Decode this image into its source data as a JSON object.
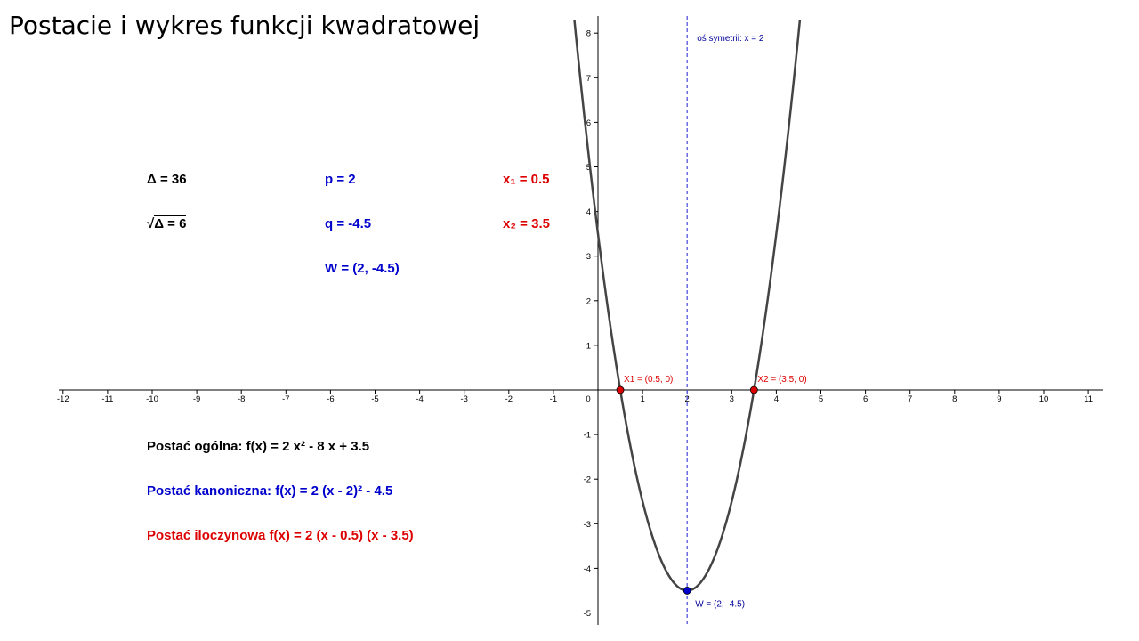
{
  "title": "Postacie i wykres funkcji kwadratowej",
  "values": {
    "delta": "Δ = 36",
    "sqrt_delta_symbol": "√",
    "sqrt_delta_rest": "Δ = 6",
    "p": "p = 2",
    "q": "q = -4.5",
    "vertex": "W = (2, -4.5)",
    "x1": "x₁ = 0.5",
    "x2": "x₂ = 3.5"
  },
  "forms": {
    "general": "Postać ogólna: f(x) = 2 x² - 8 x + 3.5",
    "canonical": "Postać kanoniczna: f(x) = 2 (x - 2)² - 4.5",
    "product": "Postać iloczynowa f(x) = 2 (x - 0.5) (x - 3.5)"
  },
  "colors": {
    "black": "#000000",
    "blue": "#0000cc",
    "red": "#dd0000",
    "curve": "#444444",
    "axis_of_symmetry": "#5555dd",
    "point_label_red": "#dd0000",
    "point_label_blue": "#000099"
  },
  "chart_data": {
    "type": "line",
    "function": "f(x) = 2 x^2 - 8 x + 3.5",
    "coefficients": {
      "a": 2,
      "b": -8,
      "c": 3.5
    },
    "xlim": [
      -12,
      11
    ],
    "ylim": [
      -5,
      8
    ],
    "x_ticks": [
      -12,
      -11,
      -10,
      -9,
      -8,
      -7,
      -6,
      -5,
      -4,
      -3,
      -2,
      -1,
      0,
      1,
      2,
      3,
      4,
      5,
      6,
      7,
      8,
      9,
      10,
      11
    ],
    "y_ticks": [
      -5,
      -4,
      -3,
      -2,
      -1,
      1,
      2,
      3,
      4,
      5,
      6,
      7,
      8
    ],
    "grid": false,
    "points": [
      {
        "name": "X1",
        "x": 0.5,
        "y": 0,
        "label": "X1 = (0.5, 0)",
        "color": "#dd0000"
      },
      {
        "name": "X2",
        "x": 3.5,
        "y": 0,
        "label": "X2 = (3.5, 0)",
        "color": "#dd0000"
      },
      {
        "name": "W",
        "x": 2,
        "y": -4.5,
        "label": "W = (2, -4.5)",
        "color": "#0000cc"
      }
    ],
    "axis_of_symmetry": {
      "x": 2,
      "label": "oś symetrii: x = 2"
    }
  }
}
